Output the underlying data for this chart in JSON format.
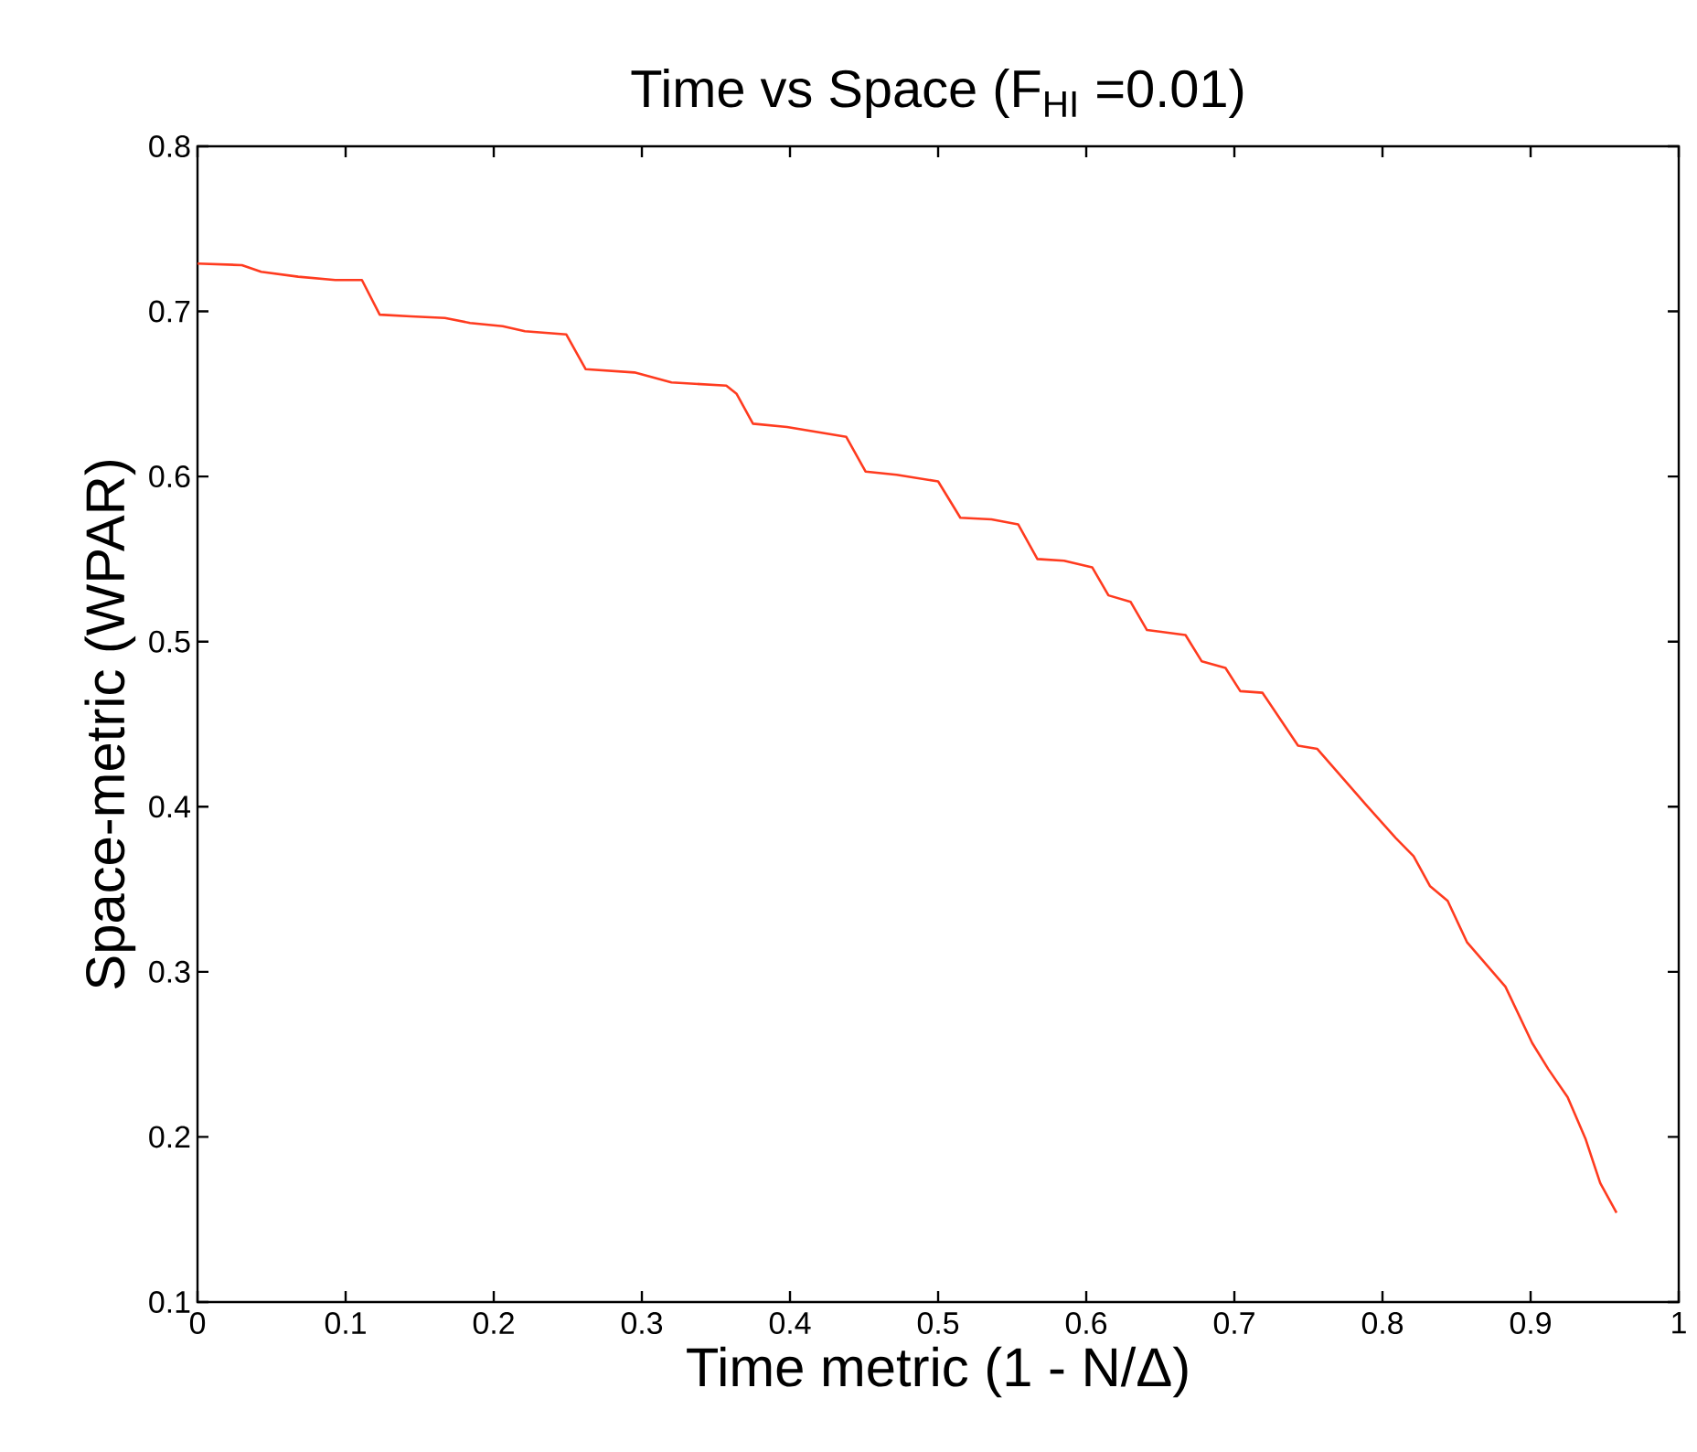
{
  "chart_data": {
    "type": "line",
    "title": "Time vs Space (F$_{HI}$ =0.01)",
    "xlabel": "Time metric (1 - N/Δ)",
    "ylabel": "Space-metric (WPAR)",
    "color": "#ff3b1f",
    "x": [
      0,
      0.03,
      0.043,
      0.068,
      0.093,
      0.111,
      0.123,
      0.144,
      0.167,
      0.184,
      0.206,
      0.221,
      0.249,
      0.262,
      0.295,
      0.32,
      0.357,
      0.364,
      0.375,
      0.398,
      0.438,
      0.451,
      0.472,
      0.5,
      0.515,
      0.536,
      0.554,
      0.567,
      0.585,
      0.604,
      0.615,
      0.63,
      0.641,
      0.667,
      0.678,
      0.694,
      0.704,
      0.719,
      0.743,
      0.756,
      0.789,
      0.809,
      0.821,
      0.832,
      0.844,
      0.857,
      0.883,
      0.901,
      0.912,
      0.925,
      0.937,
      0.947,
      0.958
    ],
    "values": [
      0.729,
      0.728,
      0.724,
      0.721,
      0.719,
      0.719,
      0.698,
      0.697,
      0.696,
      0.693,
      0.691,
      0.688,
      0.686,
      0.665,
      0.663,
      0.657,
      0.655,
      0.65,
      0.632,
      0.63,
      0.624,
      0.603,
      0.601,
      0.597,
      0.575,
      0.574,
      0.571,
      0.55,
      0.549,
      0.545,
      0.528,
      0.524,
      0.507,
      0.504,
      0.488,
      0.484,
      0.47,
      0.469,
      0.437,
      0.435,
      0.401,
      0.381,
      0.37,
      0.352,
      0.343,
      0.318,
      0.291,
      0.257,
      0.241,
      0.224,
      0.199,
      0.172,
      0.154
    ],
    "xlim": [
      0,
      1
    ],
    "ylim": [
      0.1,
      0.8
    ],
    "xticks": [
      0,
      0.1,
      0.2,
      0.3,
      0.4,
      0.5,
      0.6,
      0.7,
      0.8,
      0.9,
      1
    ],
    "yticks": [
      0.1,
      0.2,
      0.3,
      0.4,
      0.5,
      0.6,
      0.7,
      0.8
    ]
  }
}
